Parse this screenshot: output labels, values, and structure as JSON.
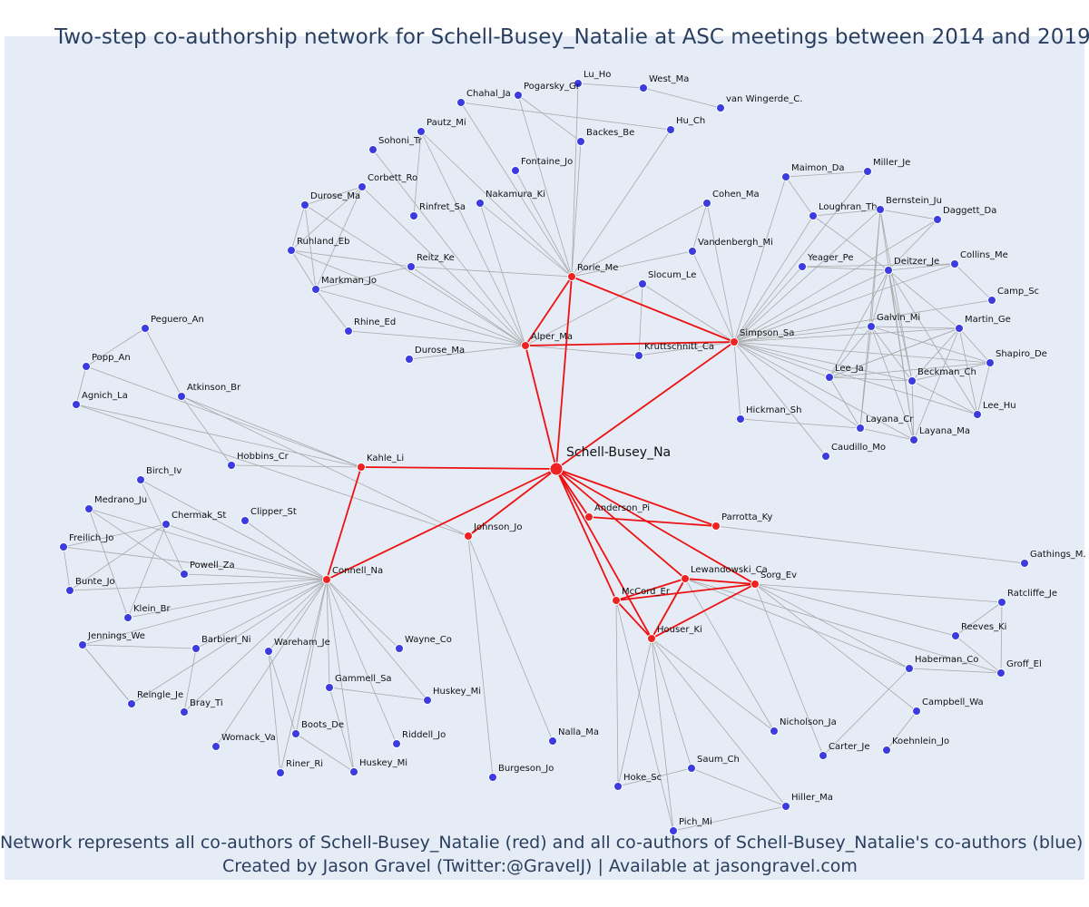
{
  "title": "Two-step co-authorship network for Schell-Busey_Natalie at ASC meetings between 2014 and 2019",
  "caption": {
    "line1": "Network represents all co-authors of Schell-Busey_Natalie (red) and all co-authors of Schell-Busey_Natalie's co-authors (blue)",
    "line2": "Created by Jason Gravel (Twitter:@GravelJ) | Available at jasongravel.com"
  },
  "colors": {
    "plot_bg": "#e5ecf6",
    "coauthor": "#ee2222",
    "second_step": "#3b3be0",
    "edge": "#a9a9a9",
    "text": "#2a3f5f"
  },
  "nodes": [
    {
      "label": "Schell-Busey_Na",
      "group": "focal"
    },
    {
      "label": "Rorie_Me",
      "group": "coauthor"
    },
    {
      "label": "Alper_Ma",
      "group": "coauthor"
    },
    {
      "label": "Simpson_Sa",
      "group": "coauthor"
    },
    {
      "label": "Kahle_Li",
      "group": "coauthor"
    },
    {
      "label": "Connell_Na",
      "group": "coauthor"
    },
    {
      "label": "Johnson_Jo",
      "group": "coauthor"
    },
    {
      "label": "Anderson_Pi",
      "group": "coauthor"
    },
    {
      "label": "Parrotta_Ky",
      "group": "coauthor"
    },
    {
      "label": "Lewandowski_Ca",
      "group": "coauthor"
    },
    {
      "label": "Sorg_Ev",
      "group": "coauthor"
    },
    {
      "label": "McCord_Er",
      "group": "coauthor"
    },
    {
      "label": "Houser_Ki",
      "group": "coauthor"
    },
    {
      "label": "Lu_Ho",
      "group": "second"
    },
    {
      "label": "West_Ma",
      "group": "second"
    },
    {
      "label": "Pogarsky_Gr",
      "group": "second"
    },
    {
      "label": "Chahal_Ja",
      "group": "second"
    },
    {
      "label": "van Wingerde_C.",
      "group": "second"
    },
    {
      "label": "Pautz_Mi",
      "group": "second"
    },
    {
      "label": "Backes_Be",
      "group": "second"
    },
    {
      "label": "Hu_Ch",
      "group": "second"
    },
    {
      "label": "Sohoni_Tr",
      "group": "second"
    },
    {
      "label": "Fontaine_Jo",
      "group": "second"
    },
    {
      "label": "Corbett_Ro",
      "group": "second"
    },
    {
      "label": "Durose_Ma",
      "group": "second"
    },
    {
      "label": "Nakamura_Ki",
      "group": "second"
    },
    {
      "label": "Rinfret_Sa",
      "group": "second"
    },
    {
      "label": "Ruhland_Eb",
      "group": "second"
    },
    {
      "label": "Reitz_Ke",
      "group": "second"
    },
    {
      "label": "Markman_Jo",
      "group": "second"
    },
    {
      "label": "Rhine_Ed",
      "group": "second"
    },
    {
      "label": "Durose_Ma",
      "group": "second"
    },
    {
      "label": "Cohen_Ma",
      "group": "second"
    },
    {
      "label": "Vandenbergh_Mi",
      "group": "second"
    },
    {
      "label": "Slocum_Le",
      "group": "second"
    },
    {
      "label": "Kruttschnitt_Ca",
      "group": "second"
    },
    {
      "label": "Maimon_Da",
      "group": "second"
    },
    {
      "label": "Miller_Je",
      "group": "second"
    },
    {
      "label": "Loughran_Th",
      "group": "second"
    },
    {
      "label": "Bernstein_Ju",
      "group": "second"
    },
    {
      "label": "Daggett_Da",
      "group": "second"
    },
    {
      "label": "Yeager_Pe",
      "group": "second"
    },
    {
      "label": "Deitzer_Je",
      "group": "second"
    },
    {
      "label": "Collins_Me",
      "group": "second"
    },
    {
      "label": "Camp_Sc",
      "group": "second"
    },
    {
      "label": "Galvin_Mi",
      "group": "second"
    },
    {
      "label": "Martin_Ge",
      "group": "second"
    },
    {
      "label": "Shapiro_De",
      "group": "second"
    },
    {
      "label": "Lee_Ja",
      "group": "second"
    },
    {
      "label": "Beckman_Ch",
      "group": "second"
    },
    {
      "label": "Lee_Hu",
      "group": "second"
    },
    {
      "label": "Hickman_Sh",
      "group": "second"
    },
    {
      "label": "Layana_Cr",
      "group": "second"
    },
    {
      "label": "Layana_Ma",
      "group": "second"
    },
    {
      "label": "Caudillo_Mo",
      "group": "second"
    },
    {
      "label": "Peguero_An",
      "group": "second"
    },
    {
      "label": "Popp_An",
      "group": "second"
    },
    {
      "label": "Agnich_La",
      "group": "second"
    },
    {
      "label": "Atkinson_Br",
      "group": "second"
    },
    {
      "label": "Hobbins_Cr",
      "group": "second"
    },
    {
      "label": "Birch_Iv",
      "group": "second"
    },
    {
      "label": "Medrano_Ju",
      "group": "second"
    },
    {
      "label": "Chermak_St",
      "group": "second"
    },
    {
      "label": "Clipper_St",
      "group": "second"
    },
    {
      "label": "Freilich_Jo",
      "group": "second"
    },
    {
      "label": "Powell_Za",
      "group": "second"
    },
    {
      "label": "Bunte_Jo",
      "group": "second"
    },
    {
      "label": "Klein_Br",
      "group": "second"
    },
    {
      "label": "Jennings_We",
      "group": "second"
    },
    {
      "label": "Barbieri_Ni",
      "group": "second"
    },
    {
      "label": "Wareham_Je",
      "group": "second"
    },
    {
      "label": "Wayne_Co",
      "group": "second"
    },
    {
      "label": "Gammell_Sa",
      "group": "second"
    },
    {
      "label": "Huskey_Mi",
      "group": "second"
    },
    {
      "label": "Reingle_Je",
      "group": "second"
    },
    {
      "label": "Bray_Ti",
      "group": "second"
    },
    {
      "label": "Boots_De",
      "group": "second"
    },
    {
      "label": "Riddell_Jo",
      "group": "second"
    },
    {
      "label": "Womack_Va",
      "group": "second"
    },
    {
      "label": "Riner_Ri",
      "group": "second"
    },
    {
      "label": "Huskey_Mi",
      "group": "second"
    },
    {
      "label": "Nalla_Ma",
      "group": "second"
    },
    {
      "label": "Burgeson_Jo",
      "group": "second"
    },
    {
      "label": "Gathings_M.",
      "group": "second"
    },
    {
      "label": "Ratcliffe_Je",
      "group": "second"
    },
    {
      "label": "Reeves_Ki",
      "group": "second"
    },
    {
      "label": "Groff_El",
      "group": "second"
    },
    {
      "label": "Haberman_Co",
      "group": "second"
    },
    {
      "label": "Campbell_Wa",
      "group": "second"
    },
    {
      "label": "Koehnlein_Jo",
      "group": "second"
    },
    {
      "label": "Carter_Je",
      "group": "second"
    },
    {
      "label": "Nicholson_Ja",
      "group": "second"
    },
    {
      "label": "Saum_Ch",
      "group": "second"
    },
    {
      "label": "Hoke_Sc",
      "group": "second"
    },
    {
      "label": "Hiller_Ma",
      "group": "second"
    },
    {
      "label": "Pich_Mi",
      "group": "second"
    }
  ]
}
